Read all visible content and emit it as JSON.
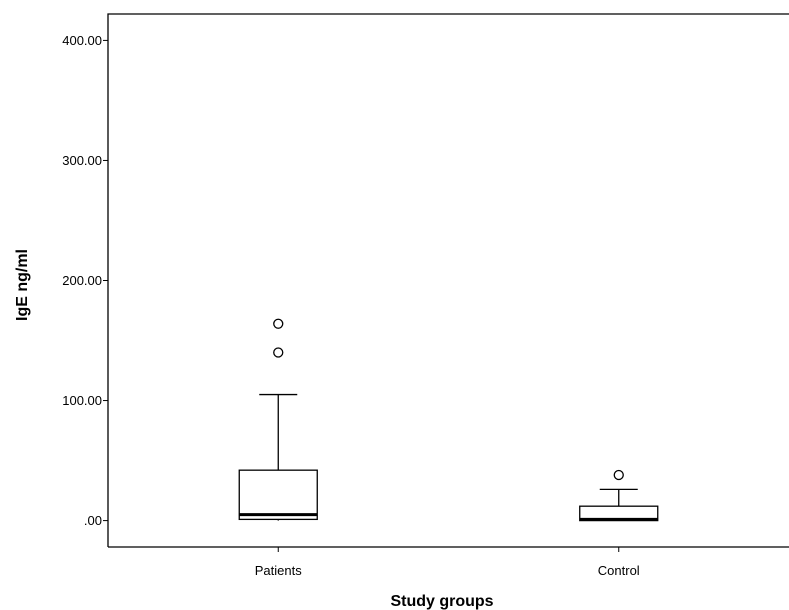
{
  "chart_data": {
    "type": "box",
    "xlabel": "Study groups",
    "ylabel": "IgE ng/ml",
    "ylim": [
      -22,
      422
    ],
    "yticks": [
      0,
      100,
      200,
      300,
      400
    ],
    "ytick_labels": [
      ".00",
      "100.00",
      "200.00",
      "300.00",
      "400.00"
    ],
    "grid": false,
    "categories": [
      "Patients",
      "Control"
    ],
    "boxes": [
      {
        "category": "Patients",
        "whisker_low": 0,
        "q1": 1,
        "median": 5,
        "q3": 42,
        "whisker_high": 105,
        "outliers": [
          140,
          164
        ]
      },
      {
        "category": "Control",
        "whisker_low": 0,
        "q1": 0,
        "median": 1,
        "q3": 12,
        "whisker_high": 26,
        "outliers": [
          38
        ]
      }
    ]
  }
}
